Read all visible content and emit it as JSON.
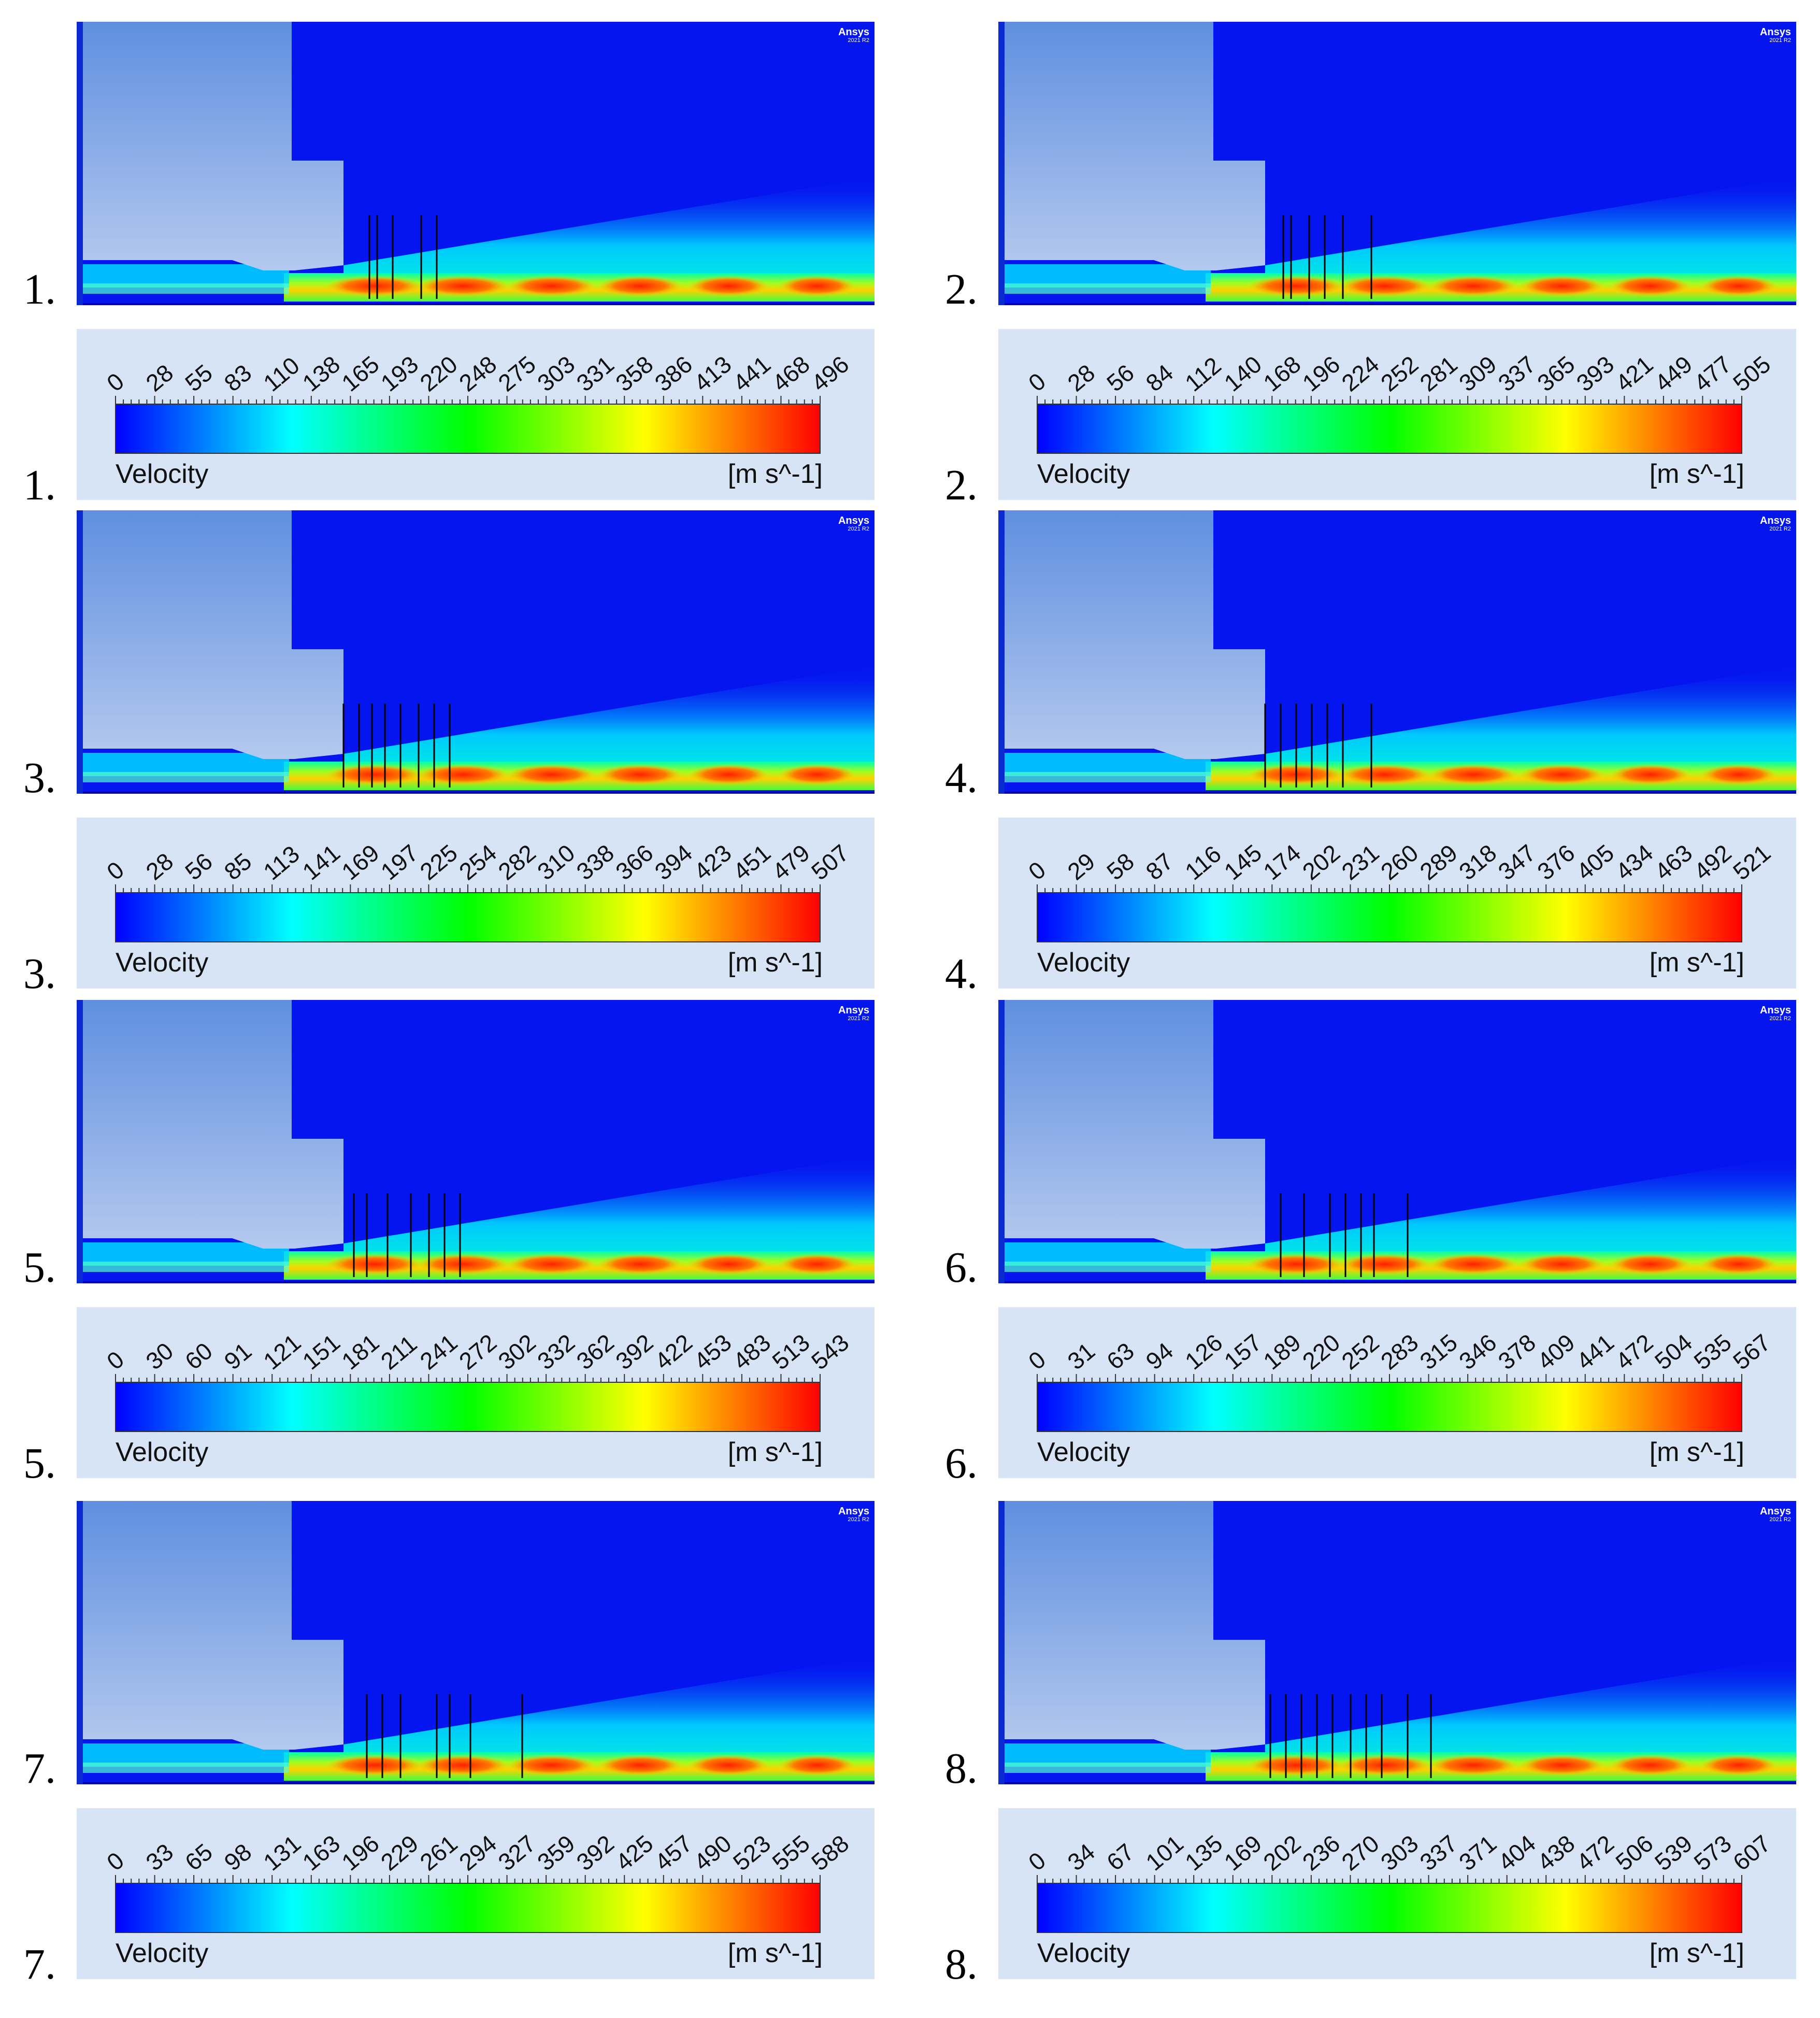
{
  "panels": [
    {
      "label": "1.",
      "legend_label": "1.",
      "brand": "Ansys",
      "brand_version": "2021 R2",
      "legend_title": "Velocity",
      "unit": "[m s^-1]",
      "ticks": [
        "0",
        "28",
        "55",
        "83",
        "110",
        "138",
        "165",
        "193",
        "220",
        "248",
        "275",
        "303",
        "331",
        "358",
        "386",
        "413",
        "441",
        "468",
        "496"
      ]
    },
    {
      "label": "2.",
      "legend_label": "2.",
      "brand": "Ansys",
      "brand_version": "2021 R2",
      "legend_title": "Velocity",
      "unit": "[m s^-1]",
      "ticks": [
        "0",
        "28",
        "56",
        "84",
        "112",
        "140",
        "168",
        "196",
        "224",
        "252",
        "281",
        "309",
        "337",
        "365",
        "393",
        "421",
        "449",
        "477",
        "505"
      ]
    },
    {
      "label": "3.",
      "legend_label": "3.",
      "brand": "Ansys",
      "brand_version": "2021 R2",
      "legend_title": "Velocity",
      "unit": "[m s^-1]",
      "ticks": [
        "0",
        "28",
        "56",
        "85",
        "113",
        "141",
        "169",
        "197",
        "225",
        "254",
        "282",
        "310",
        "338",
        "366",
        "394",
        "423",
        "451",
        "479",
        "507"
      ]
    },
    {
      "label": "4.",
      "legend_label": "4.",
      "brand": "Ansys",
      "brand_version": "2021 R2",
      "legend_title": "Velocity",
      "unit": "[m s^-1]",
      "ticks": [
        "0",
        "29",
        "58",
        "87",
        "116",
        "145",
        "174",
        "202",
        "231",
        "260",
        "289",
        "318",
        "347",
        "376",
        "405",
        "434",
        "463",
        "492",
        "521"
      ]
    },
    {
      "label": "5.",
      "legend_label": "5.",
      "brand": "Ansys",
      "brand_version": "2021 R2",
      "legend_title": "Velocity",
      "unit": "[m s^-1]",
      "ticks": [
        "0",
        "30",
        "60",
        "91",
        "121",
        "151",
        "181",
        "211",
        "241",
        "272",
        "302",
        "332",
        "362",
        "392",
        "422",
        "453",
        "483",
        "513",
        "543"
      ]
    },
    {
      "label": "6.",
      "legend_label": "6.",
      "brand": "Ansys",
      "brand_version": "2021 R2",
      "legend_title": "Velocity",
      "unit": "[m s^-1]",
      "ticks": [
        "0",
        "31",
        "63",
        "94",
        "126",
        "157",
        "189",
        "220",
        "252",
        "283",
        "315",
        "346",
        "378",
        "409",
        "441",
        "472",
        "504",
        "535",
        "567"
      ]
    },
    {
      "label": "7.",
      "legend_label": "7.",
      "brand": "Ansys",
      "brand_version": "2021 R2",
      "legend_title": "Velocity",
      "unit": "[m s^-1]",
      "ticks": [
        "0",
        "33",
        "65",
        "98",
        "131",
        "163",
        "196",
        "229",
        "261",
        "294",
        "327",
        "359",
        "392",
        "425",
        "457",
        "490",
        "523",
        "555",
        "588"
      ]
    },
    {
      "label": "8.",
      "legend_label": "8.",
      "brand": "Ansys",
      "brand_version": "2021 R2",
      "legend_title": "Velocity",
      "unit": "[m s^-1]",
      "ticks": [
        "0",
        "34",
        "67",
        "101",
        "135",
        "169",
        "202",
        "236",
        "270",
        "303",
        "337",
        "371",
        "404",
        "438",
        "472",
        "506",
        "539",
        "573",
        "607"
      ]
    }
  ],
  "colors": {
    "field": "#0515f0",
    "body_top": "#5f8fe0",
    "body_bottom": "#b4c9ee",
    "legend_bg": "#d6e4f5",
    "scale": [
      "#0000ff",
      "#00ffff",
      "#00ff00",
      "#ffff00",
      "#ff0000"
    ]
  }
}
